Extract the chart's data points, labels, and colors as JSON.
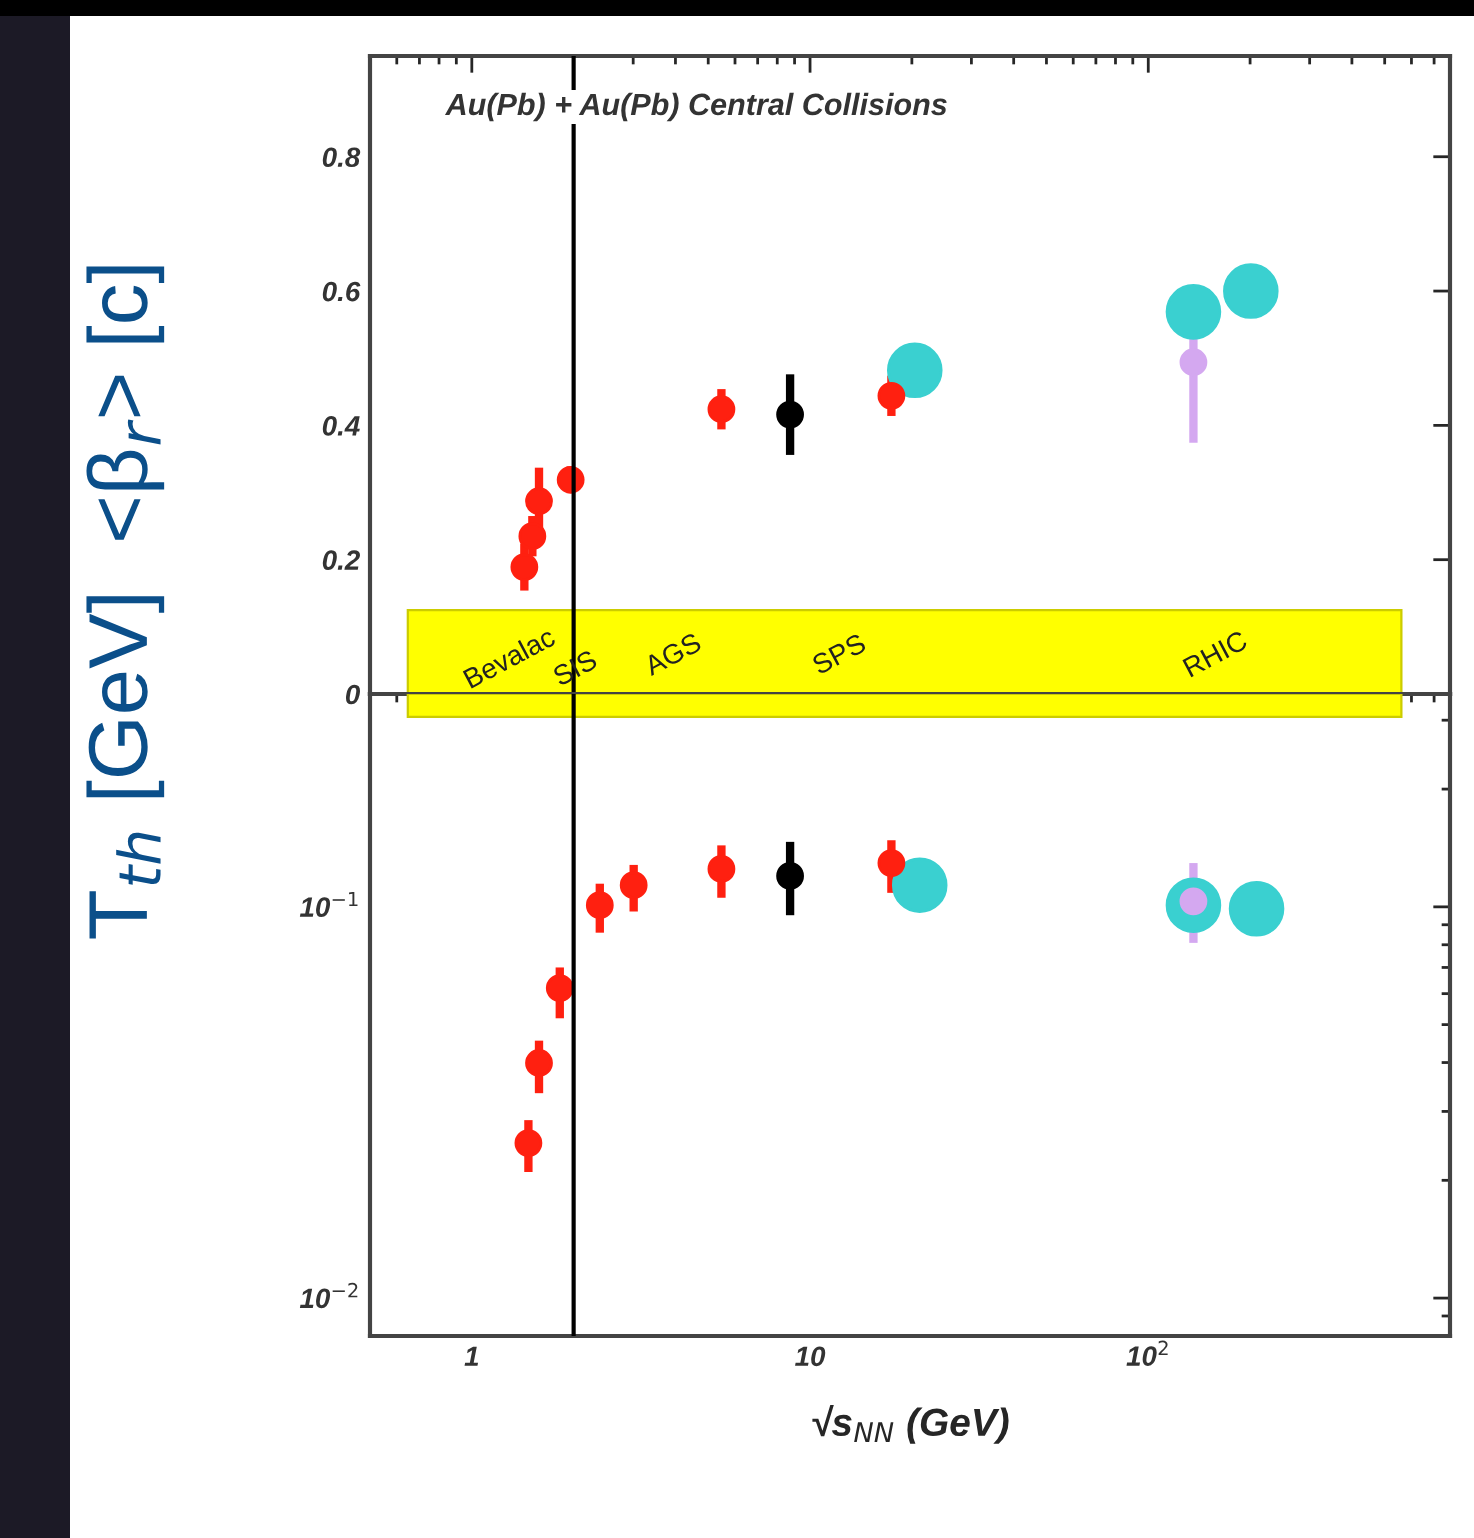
{
  "chart_data": [
    {
      "type": "scatter",
      "title": "Au(Pb) + Au(Pb) Central Collisions",
      "log": "x",
      "xlim": [
        0.5,
        780
      ],
      "xticks": [
        {
          "value": 1,
          "label": null
        },
        {
          "value": 10,
          "label": null
        },
        {
          "value": 100,
          "label": null
        }
      ],
      "ylim": [
        0,
        0.95
      ],
      "yticks": [
        0,
        0.2,
        0.4,
        0.6,
        0.8
      ],
      "tick_labels": "y",
      "grid": false,
      "legend": false,
      "marker": "circle",
      "series": [
        {
          "color": "#ff2010",
          "x": [
            1.43,
            1.51,
            1.58,
            1.96,
            5.47,
            17.4
          ],
          "values": [
            0.189,
            0.235,
            0.287,
            0.319,
            0.424,
            0.444
          ],
          "errors": [
            0.035,
            0.03,
            0.05,
            0.02,
            0.03,
            0.03
          ]
        },
        {
          "color": "#000000",
          "x": [
            8.73
          ],
          "values": [
            0.416
          ],
          "errors": [
            0.06
          ]
        },
        {
          "color": "#d4a8f0",
          "x": [
            136
          ],
          "values": [
            0.494
          ],
          "errors": [
            [
              0.374,
              0.535
            ]
          ]
        },
        {
          "color": "#3ad0d0",
          "x": [
            20.4,
            136,
            201
          ],
          "values": [
            0.482,
            0.569,
            0.6
          ]
        }
      ],
      "annotations": [
        "Bevalac",
        "SIS",
        "AGS",
        "SPS",
        "RHIC"
      ],
      "bands": [
        {
          "axis": "y",
          "from": 0,
          "to": 0.125,
          "color": "#ffff00"
        }
      ],
      "ref_lines": [
        {
          "axis": "x",
          "value": 2,
          "color": "#000000"
        }
      ]
    },
    {
      "type": "scatter",
      "xlabel": "√s$_{NN}$ (GeV)",
      "ylabel": "T$_{th}$ [GeV]  <β$_{r}$> [c]",
      "log": "xy",
      "xlim": [
        0.5,
        780
      ],
      "xticks": [
        1,
        10,
        {
          "value": 100,
          "label": "10$^{2}$"
        }
      ],
      "ylim": [
        0.008,
        0.35
      ],
      "yticks": [
        {
          "value": 0.01,
          "label": "10$^{−2}$"
        },
        {
          "value": 0.1,
          "label": "10$^{−1}$"
        }
      ],
      "grid": false,
      "legend": false,
      "marker": "circle",
      "series": [
        {
          "color": "#ff2010",
          "x": [
            1.47,
            1.58,
            1.82,
            2.39,
            3.01,
            5.47,
            17.4
          ],
          "values": [
            0.0249,
            0.0399,
            0.062,
            0.101,
            0.1136,
            0.125,
            0.1294
          ],
          "errors": [
            [
              0.021,
              0.0285
            ],
            [
              0.0334,
              0.0455
            ],
            [
              0.0519,
              0.07
            ],
            [
              0.0859,
              0.1146
            ],
            [
              0.0973,
              0.128
            ],
            [
              0.1055,
              0.1436
            ],
            [
              0.1086,
              0.148
            ]
          ]
        },
        {
          "color": "#000000",
          "x": [
            8.73
          ],
          "values": [
            0.12
          ],
          "errors": [
            [
              0.0952,
              0.1466
            ]
          ]
        },
        {
          "color": "#d4a8f0",
          "x": [
            136
          ],
          "values": [
            0.1033
          ],
          "errors": [
            [
              0.0809,
              0.1294
            ]
          ]
        },
        {
          "color": "#3ad0d0",
          "x": [
            21.1,
            136,
            209
          ],
          "values": [
            0.1136,
            0.101,
            0.0989
          ]
        }
      ],
      "bands": [
        {
          "axis": "y",
          "from": 0.306,
          "to": 0.35,
          "color": "#ffff00"
        }
      ],
      "ref_lines": [
        {
          "axis": "x",
          "value": 2,
          "color": "#000000"
        }
      ]
    }
  ]
}
